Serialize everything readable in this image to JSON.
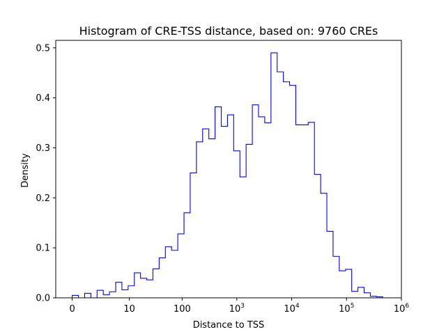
{
  "chart_data": {
    "type": "step-histogram",
    "title": "Histogram of CRE-TSS distance, based on: 9760 CREs",
    "xlabel": "Distance to TSS",
    "ylabel": "Density",
    "x_scale": "log(1+x)",
    "xlim_log": [
      -0.3,
      6.0
    ],
    "ylim": [
      0,
      0.515
    ],
    "grid": false,
    "legend": "none",
    "line_color": "#0000ff",
    "x_ticks": [
      {
        "value": 0,
        "base": "0",
        "exp": ""
      },
      {
        "value": 10,
        "base": "10",
        "exp": ""
      },
      {
        "value": 100,
        "base": "100",
        "exp": ""
      },
      {
        "value": 1000,
        "base": "10",
        "exp": "3"
      },
      {
        "value": 10000,
        "base": "10",
        "exp": "4"
      },
      {
        "value": 100000,
        "base": "10",
        "exp": "5"
      },
      {
        "value": 1000000,
        "base": "10",
        "exp": "6"
      }
    ],
    "y_ticks": [
      "0.0",
      "0.1",
      "0.2",
      "0.3",
      "0.4",
      "0.5"
    ],
    "bin_start_log": 0,
    "bin_width_log": 0.1132,
    "densities": [
      0.005,
      0.0,
      0.009,
      0.0,
      0.015,
      0.006,
      0.012,
      0.031,
      0.016,
      0.024,
      0.05,
      0.039,
      0.036,
      0.058,
      0.08,
      0.102,
      0.095,
      0.128,
      0.17,
      0.25,
      0.312,
      0.338,
      0.318,
      0.382,
      0.343,
      0.366,
      0.294,
      0.242,
      0.307,
      0.386,
      0.362,
      0.35,
      0.49,
      0.452,
      0.432,
      0.425,
      0.346,
      0.346,
      0.351,
      0.247,
      0.209,
      0.133,
      0.083,
      0.054,
      0.057,
      0.013,
      0.021,
      0.01,
      0.003,
      0.002
    ]
  }
}
